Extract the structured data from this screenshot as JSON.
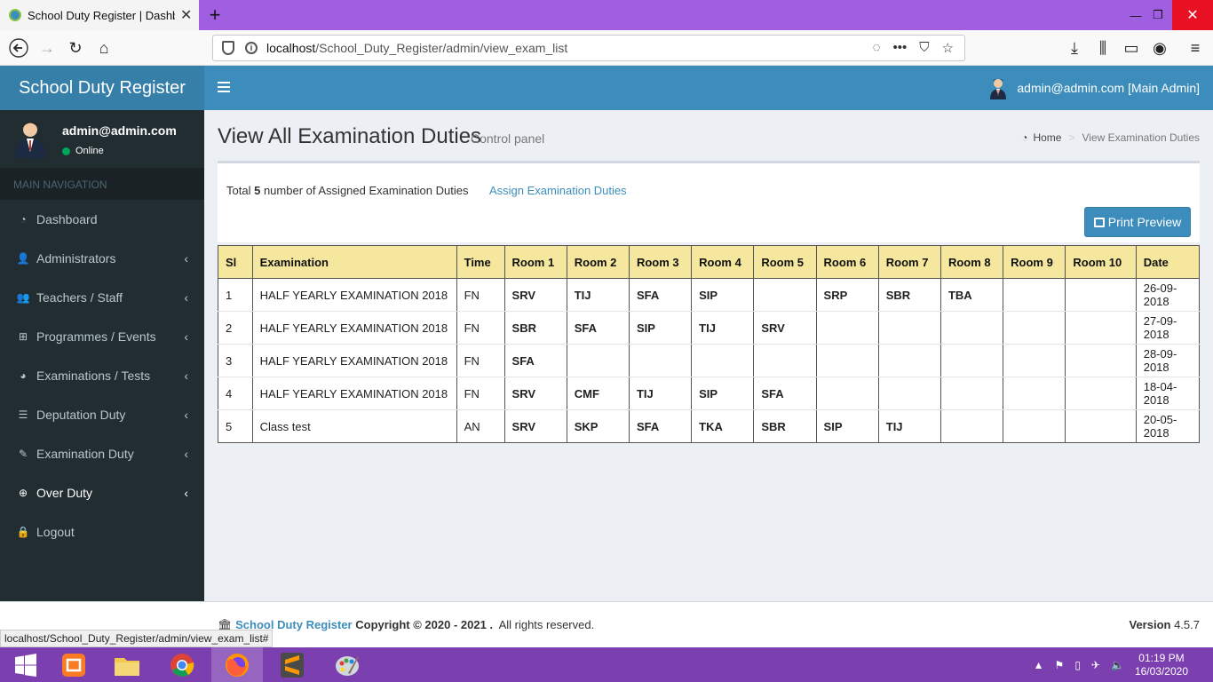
{
  "browser": {
    "tab_title": "School Duty Register | Dashboard",
    "url_host": "localhost",
    "url_path": "/School_Duty_Register/admin/view_exam_list",
    "status_url": "localhost/School_Duty_Register/admin/view_exam_list#"
  },
  "app": {
    "logo": "School Duty Register",
    "header_user": "admin@admin.com [Main Admin]"
  },
  "sidebar": {
    "user_name": "admin@admin.com",
    "user_status": "Online",
    "nav_header": "MAIN NAVIGATION",
    "items": [
      {
        "label": "Dashboard",
        "icon": "dashboard-icon"
      },
      {
        "label": "Administrators",
        "icon": "user-plus-icon"
      },
      {
        "label": "Teachers / Staff",
        "icon": "users-icon"
      },
      {
        "label": "Programmes / Events",
        "icon": "windows-icon"
      },
      {
        "label": "Examinations / Tests",
        "icon": "pie-chart-icon"
      },
      {
        "label": "Deputation Duty",
        "icon": "list-icon"
      },
      {
        "label": "Examination Duty",
        "icon": "edit-icon"
      },
      {
        "label": "Over Duty",
        "icon": "plus-circle-icon"
      },
      {
        "label": "Logout",
        "icon": "lock-icon"
      }
    ]
  },
  "content": {
    "title": "View All Examination Duties",
    "subtitle": "Control panel",
    "breadcrumb_home": "Home",
    "breadcrumb_current": "View Examination Duties",
    "summary_prefix": "Total",
    "summary_count": "5",
    "summary_suffix": "number of Assigned Examination Duties",
    "assign_link": "Assign Examination Duties",
    "print_button": "Print Preview"
  },
  "table": {
    "headers": [
      "Sl",
      "Examination",
      "Time",
      "Room 1",
      "Room 2",
      "Room 3",
      "Room 4",
      "Room 5",
      "Room 6",
      "Room 7",
      "Room 8",
      "Room 9",
      "Room 10",
      "Date"
    ],
    "rows": [
      [
        "1",
        "HALF YEARLY EXAMINATION 2018",
        "FN",
        "SRV",
        "TIJ",
        "SFA",
        "SIP",
        "",
        "SRP",
        "SBR",
        "TBA",
        "",
        "",
        "26-09-2018"
      ],
      [
        "2",
        "HALF YEARLY EXAMINATION 2018",
        "FN",
        "SBR",
        "SFA",
        "SIP",
        "TIJ",
        "SRV",
        "",
        "",
        "",
        "",
        "",
        "27-09-2018"
      ],
      [
        "3",
        "HALF YEARLY EXAMINATION 2018",
        "FN",
        "SFA",
        "",
        "",
        "",
        "",
        "",
        "",
        "",
        "",
        "",
        "28-09-2018"
      ],
      [
        "4",
        "HALF YEARLY EXAMINATION 2018",
        "FN",
        "SRV",
        "CMF",
        "TIJ",
        "SIP",
        "SFA",
        "",
        "",
        "",
        "",
        "",
        "18-04-2018"
      ],
      [
        "5",
        "Class test",
        "AN",
        "SRV",
        "SKP",
        "SFA",
        "TKA",
        "SBR",
        "SIP",
        "TIJ",
        "",
        "",
        "",
        "20-05-2018"
      ]
    ]
  },
  "footer": {
    "brand": "School Duty Register",
    "copyright": "Copyright © 2020 - 2021 .",
    "rights": "All rights reserved.",
    "version_label": "Version",
    "version": "4.5.7"
  },
  "taskbar": {
    "time": "01:19 PM",
    "date": "16/03/2020"
  },
  "colors": {
    "accent": "#3c8dbc",
    "sidebar": "#222d32",
    "table_header": "#f5e79e",
    "browser_frame": "#a05fe0"
  }
}
